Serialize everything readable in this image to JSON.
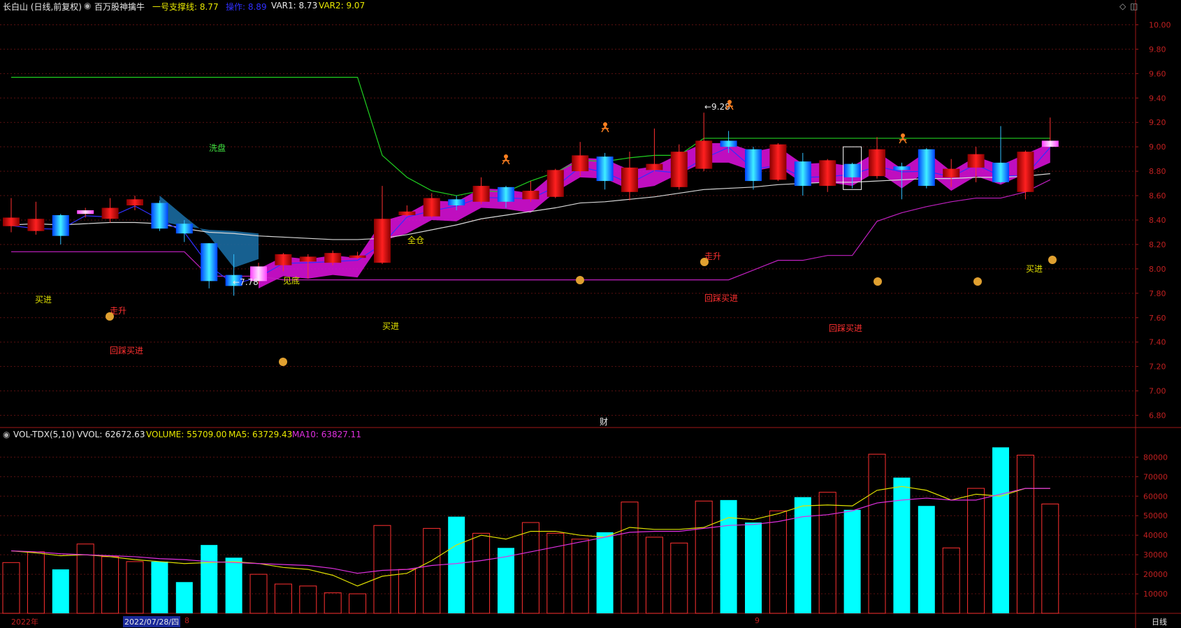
{
  "header": {
    "stock": "长白山 (日线,前复权)",
    "indicator": "百万股神擒牛",
    "support_label": "一号支撑线: 8.77",
    "op_label": "操作: 8.89",
    "var1_label": "VAR1: 8.73",
    "var2_label": "VAR2: 9.07"
  },
  "vol_header": {
    "name": "VOL-TDX(5,10)",
    "vvol": "VVOL: 62672.63",
    "volume": "VOLUME: 55709.00",
    "ma5": "MA5: 63729.43",
    "ma10": "MA10: 63827.11"
  },
  "price_axis": [
    "10.00",
    "9.80",
    "9.60",
    "9.40",
    "9.20",
    "9.00",
    "8.80",
    "8.60",
    "8.40",
    "8.20",
    "8.00",
    "7.80",
    "7.60",
    "7.40",
    "7.20",
    "7.00",
    "6.80"
  ],
  "vol_axis": [
    "80000",
    "70000",
    "60000",
    "50000",
    "40000",
    "30000",
    "20000",
    "10000"
  ],
  "bottom": {
    "year": "2022年",
    "date": "2022/07/28/四",
    "month8": "8",
    "month9": "9",
    "period": "日线"
  },
  "low_mark": "←7.78",
  "high_mark": "←9.28",
  "fin_mark": "财",
  "annotations": [
    {
      "text": "洗盘",
      "color": "#40e040"
    },
    {
      "text": "见底",
      "color": "#e0e000"
    },
    {
      "text": "全仓",
      "color": "#e0e000"
    },
    {
      "text": "买进",
      "color": "#e0e000"
    },
    {
      "text": "买进",
      "color": "#e0e000"
    },
    {
      "text": "买进",
      "color": "#e0e000"
    },
    {
      "text": "走升",
      "color": "#ff3030"
    },
    {
      "text": "走升",
      "color": "#ff3030"
    },
    {
      "text": "回踩买进",
      "color": "#ff3030"
    },
    {
      "text": "回踩买进",
      "color": "#ff3030"
    },
    {
      "text": "回踩买进",
      "color": "#ff3030"
    }
  ],
  "chart_data": {
    "type": "candlestick",
    "candles": [
      {
        "o": 8.35,
        "c": 8.42,
        "h": 8.58,
        "l": 8.3
      },
      {
        "o": 8.31,
        "c": 8.41,
        "h": 8.55,
        "l": 8.28
      },
      {
        "o": 8.44,
        "c": 8.27,
        "h": 8.45,
        "l": 8.2
      },
      {
        "o": 8.45,
        "c": 8.48,
        "h": 8.5,
        "l": 8.42
      },
      {
        "o": 8.41,
        "c": 8.5,
        "h": 8.58,
        "l": 8.38
      },
      {
        "o": 8.52,
        "c": 8.57,
        "h": 8.6,
        "l": 8.48
      },
      {
        "o": 8.54,
        "c": 8.33,
        "h": 8.56,
        "l": 8.31
      },
      {
        "o": 8.37,
        "c": 8.29,
        "h": 8.4,
        "l": 8.22
      },
      {
        "o": 8.21,
        "c": 7.9,
        "h": 8.21,
        "l": 7.84
      },
      {
        "o": 7.95,
        "c": 7.86,
        "h": 8.12,
        "l": 7.78
      },
      {
        "o": 7.9,
        "c": 8.02,
        "h": 8.05,
        "l": 7.88
      },
      {
        "o": 8.03,
        "c": 8.12,
        "h": 8.13,
        "l": 7.98
      },
      {
        "o": 8.06,
        "c": 8.1,
        "h": 8.12,
        "l": 7.92
      },
      {
        "o": 8.05,
        "c": 8.13,
        "h": 8.15,
        "l": 8.03
      },
      {
        "o": 8.09,
        "c": 8.11,
        "h": 8.14,
        "l": 8.08
      },
      {
        "o": 8.05,
        "c": 8.41,
        "h": 8.68,
        "l": 8.04
      },
      {
        "o": 8.44,
        "c": 8.47,
        "h": 8.52,
        "l": 8.43
      },
      {
        "o": 8.43,
        "c": 8.58,
        "h": 8.62,
        "l": 8.42
      },
      {
        "o": 8.57,
        "c": 8.52,
        "h": 8.6,
        "l": 8.48
      },
      {
        "o": 8.55,
        "c": 8.68,
        "h": 8.75,
        "l": 8.53
      },
      {
        "o": 8.67,
        "c": 8.55,
        "h": 8.68,
        "l": 8.5
      },
      {
        "o": 8.57,
        "c": 8.64,
        "h": 8.72,
        "l": 8.55
      },
      {
        "o": 8.59,
        "c": 8.81,
        "h": 8.82,
        "l": 8.58
      },
      {
        "o": 8.8,
        "c": 8.93,
        "h": 9.04,
        "l": 8.76
      },
      {
        "o": 8.92,
        "c": 8.72,
        "h": 8.95,
        "l": 8.65
      },
      {
        "o": 8.63,
        "c": 8.83,
        "h": 8.96,
        "l": 8.56
      },
      {
        "o": 8.81,
        "c": 8.86,
        "h": 9.15,
        "l": 8.8
      },
      {
        "o": 8.67,
        "c": 8.96,
        "h": 9.02,
        "l": 8.65
      },
      {
        "o": 8.82,
        "c": 9.05,
        "h": 9.28,
        "l": 8.8
      },
      {
        "o": 9.05,
        "c": 9.0,
        "h": 9.13,
        "l": 8.95
      },
      {
        "o": 8.98,
        "c": 8.72,
        "h": 9.0,
        "l": 8.65
      },
      {
        "o": 8.73,
        "c": 9.02,
        "h": 9.03,
        "l": 8.72
      },
      {
        "o": 8.88,
        "c": 8.68,
        "h": 8.95,
        "l": 8.6
      },
      {
        "o": 8.68,
        "c": 8.89,
        "h": 8.9,
        "l": 8.63
      },
      {
        "o": 8.86,
        "c": 8.75,
        "h": 8.87,
        "l": 8.66
      },
      {
        "o": 8.76,
        "c": 8.98,
        "h": 9.08,
        "l": 8.74
      },
      {
        "o": 8.84,
        "c": 8.81,
        "h": 8.87,
        "l": 8.57
      },
      {
        "o": 8.98,
        "c": 8.68,
        "h": 8.99,
        "l": 8.66
      },
      {
        "o": 8.75,
        "c": 8.82,
        "h": 8.9,
        "l": 8.67
      },
      {
        "o": 8.83,
        "c": 8.94,
        "h": 9.0,
        "l": 8.71
      },
      {
        "o": 8.87,
        "c": 8.71,
        "h": 9.17,
        "l": 8.7
      },
      {
        "o": 8.63,
        "c": 8.96,
        "h": 8.97,
        "l": 8.57
      },
      {
        "o": 9.0,
        "c": 9.05,
        "h": 9.24,
        "l": 9.0
      }
    ],
    "volume": [
      26000,
      31500,
      22500,
      35500,
      29000,
      26500,
      26500,
      16000,
      35000,
      28500,
      20000,
      15000,
      14000,
      10500,
      10000,
      45000,
      22500,
      43500,
      49500,
      41000,
      33500,
      46500,
      41000,
      38000,
      41500,
      57000,
      39000,
      36000,
      57500,
      58000,
      46500,
      52500,
      59500,
      62000,
      53000,
      81500,
      69500,
      55000,
      33500,
      64000,
      85000,
      81000,
      56000
    ],
    "vol_ma5": [
      32000,
      31000,
      29500,
      30000,
      29000,
      27500,
      26500,
      25500,
      26000,
      26500,
      25500,
      23500,
      22500,
      19500,
      14000,
      19000,
      20500,
      27000,
      35000,
      40000,
      38000,
      42000,
      42000,
      40000,
      39000,
      44000,
      43000,
      43000,
      44000,
      49000,
      48000,
      51000,
      55000,
      55500,
      55000,
      63000,
      65000,
      63000,
      58000,
      61000,
      60000,
      64000,
      64000
    ],
    "vol_ma10": [
      32000,
      31500,
      30500,
      30000,
      29500,
      29000,
      28000,
      27500,
      26500,
      26000,
      25500,
      25000,
      24500,
      23000,
      20500,
      22000,
      22500,
      24500,
      25500,
      27000,
      29000,
      31500,
      34000,
      36500,
      39000,
      41500,
      42000,
      42000,
      43500,
      45000,
      45500,
      47000,
      49500,
      50500,
      52500,
      56500,
      58000,
      59000,
      58000,
      58000,
      61000,
      64000,
      64000
    ],
    "ma_white": [
      8.36,
      8.37,
      8.36,
      8.37,
      8.38,
      8.38,
      8.37,
      8.33,
      8.3,
      8.29,
      8.27,
      8.26,
      8.25,
      8.24,
      8.24,
      8.25,
      8.28,
      8.32,
      8.36,
      8.41,
      8.44,
      8.47,
      8.5,
      8.54,
      8.55,
      8.57,
      8.59,
      8.62,
      8.65,
      8.66,
      8.67,
      8.69,
      8.7,
      8.71,
      8.71,
      8.72,
      8.73,
      8.74,
      8.74,
      8.75,
      8.75,
      8.76,
      8.78
    ],
    "support_purple": [
      8.14,
      8.14,
      8.14,
      8.14,
      8.14,
      8.14,
      8.14,
      8.14,
      7.94,
      7.94,
      7.94,
      7.91,
      7.91,
      7.91,
      7.91,
      7.91,
      7.91,
      7.91,
      7.91,
      7.91,
      7.91,
      7.91,
      7.91,
      7.91,
      7.91,
      7.91,
      7.91,
      7.91,
      7.91,
      7.91,
      7.99,
      8.07,
      8.07,
      8.11,
      8.11,
      8.39,
      8.46,
      8.51,
      8.55,
      8.58,
      8.58,
      8.63,
      8.73
    ],
    "green_line": [
      9.57,
      9.57,
      9.57,
      9.57,
      9.57,
      9.57,
      9.57,
      9.57,
      9.57,
      9.57,
      9.57,
      9.57,
      9.57,
      9.57,
      9.57,
      8.93,
      8.75,
      8.64,
      8.6,
      8.64,
      8.63,
      8.72,
      8.79,
      8.89,
      8.88,
      8.91,
      8.93,
      8.93,
      9.07,
      9.07,
      9.07,
      9.07,
      9.07,
      9.07,
      9.07,
      9.07,
      9.07,
      9.07,
      9.07,
      9.07,
      9.07,
      9.07,
      9.07
    ],
    "ylim": [
      6.7,
      10.1
    ],
    "vol_ylim": [
      0,
      88000
    ]
  }
}
